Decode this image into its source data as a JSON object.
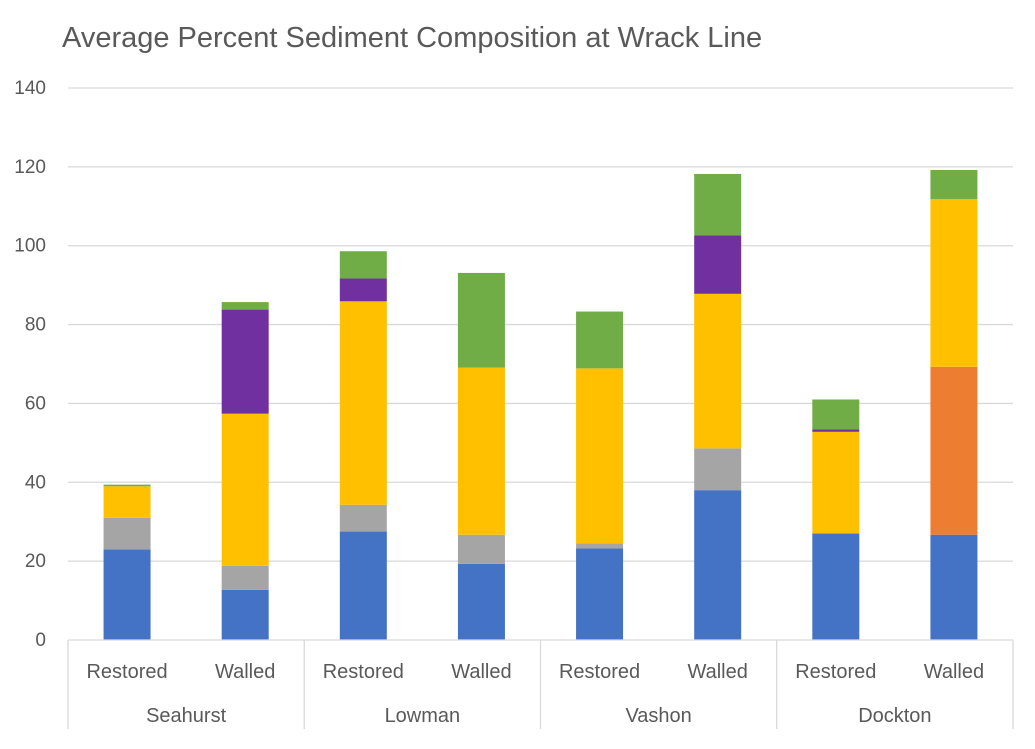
{
  "chart_data": {
    "type": "bar",
    "stacked": true,
    "title": "Average Percent Sediment Composition at Wrack Line",
    "xlabel": "",
    "ylabel": "",
    "ylim": [
      0,
      140
    ],
    "yticks": [
      0,
      20,
      40,
      60,
      80,
      100,
      120,
      140
    ],
    "grid": true,
    "legend": "none",
    "groups": [
      {
        "name": "Seahurst",
        "categories": [
          "Restored",
          "Walled"
        ]
      },
      {
        "name": "Lowman",
        "categories": [
          "Restored",
          "Walled"
        ]
      },
      {
        "name": "Vashon",
        "categories": [
          "Restored",
          "Walled"
        ]
      },
      {
        "name": "Dockton",
        "categories": [
          "Restored",
          "Walled"
        ]
      }
    ],
    "categories": [
      "Restored",
      "Walled",
      "Restored",
      "Walled",
      "Restored",
      "Walled",
      "Restored",
      "Walled"
    ],
    "series": [
      {
        "color": "#4472C4",
        "values": [
          23,
          12.7,
          27.5,
          19.3,
          23.2,
          38,
          27,
          26.7
        ]
      },
      {
        "color": "#A5A5A5",
        "values": [
          8,
          6.1,
          6.8,
          7.4,
          1.3,
          10.6,
          0,
          0
        ]
      },
      {
        "color": "#ED7D31",
        "values": [
          0,
          0,
          0,
          0,
          0,
          0,
          0,
          42.6
        ]
      },
      {
        "color": "#FFC000",
        "values": [
          8,
          38.6,
          51.6,
          42.4,
          44.4,
          39.2,
          25.8,
          42.5
        ]
      },
      {
        "color": "#7030A0",
        "values": [
          0,
          26.4,
          5.8,
          0,
          0,
          14.8,
          0.6,
          0
        ]
      },
      {
        "color": "#70AD47",
        "values": [
          0.4,
          1.9,
          6.9,
          24,
          14.4,
          15.6,
          7.6,
          7.4
        ]
      }
    ]
  }
}
